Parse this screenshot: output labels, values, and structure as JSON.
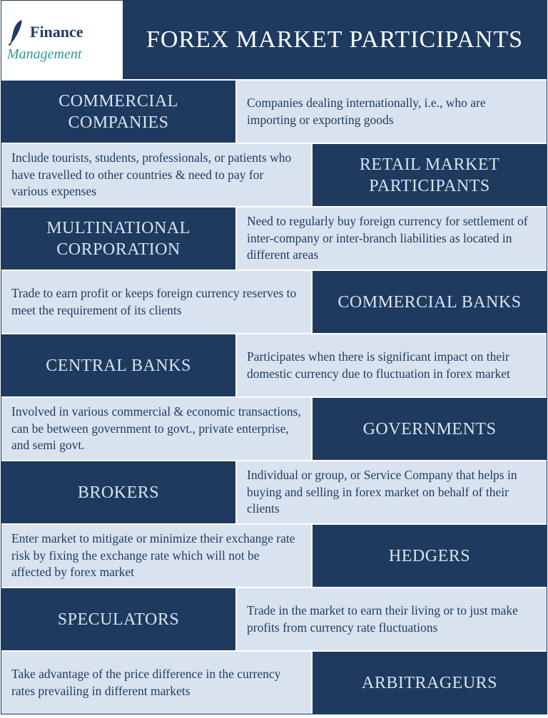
{
  "colors": {
    "dark": "#1e3a5f",
    "light": "#d9e3ef",
    "white": "#ffffff",
    "teal": "#2a9d8f"
  },
  "logo": {
    "line1": "Finance",
    "line2": "Management"
  },
  "title": "FOREX MARKET PARTICIPANTS",
  "rows": [
    {
      "layout": "left-dark",
      "heading": "COMMERCIAL COMPANIES",
      "desc": "Companies dealing internationally, i.e., who are importing or exporting goods"
    },
    {
      "layout": "right-dark",
      "heading": "RETAIL MARKET PARTICIPANTS",
      "desc": "Include tourists, students, professionals, or patients who have travelled to other countries & need to pay for various expenses"
    },
    {
      "layout": "left-dark",
      "heading": "MULTINATIONAL CORPORATION",
      "desc": "Need to regularly buy foreign currency for settlement of inter-company or inter-branch liabilities as located in different areas"
    },
    {
      "layout": "right-dark",
      "heading": "COMMERCIAL BANKS",
      "desc": "Trade to earn profit or keeps foreign currency reserves to meet the requirement of its clients"
    },
    {
      "layout": "left-dark",
      "heading": "CENTRAL BANKS",
      "desc": "Participates when there is significant impact on their domestic currency due to fluctuation in forex market"
    },
    {
      "layout": "right-dark",
      "heading": "GOVERNMENTS",
      "desc": "Involved in various commercial & economic transactions, can be between government to govt., private enterprise, and semi govt."
    },
    {
      "layout": "left-dark",
      "heading": "BROKERS",
      "desc": "Individual or group, or Service Company that helps in buying and selling in forex market on behalf of their clients"
    },
    {
      "layout": "right-dark",
      "heading": "HEDGERS",
      "desc": "Enter market to mitigate or minimize their exchange rate risk by fixing the exchange rate which will not be affected by forex market"
    },
    {
      "layout": "left-dark",
      "heading": "SPECULATORS",
      "desc": "Trade in the market to earn their living or to just make profits from currency rate fluctuations"
    },
    {
      "layout": "right-dark",
      "heading": "ARBITRAGEURS",
      "desc": "Take advantage of the price difference in the currency rates prevailing in different markets"
    }
  ]
}
